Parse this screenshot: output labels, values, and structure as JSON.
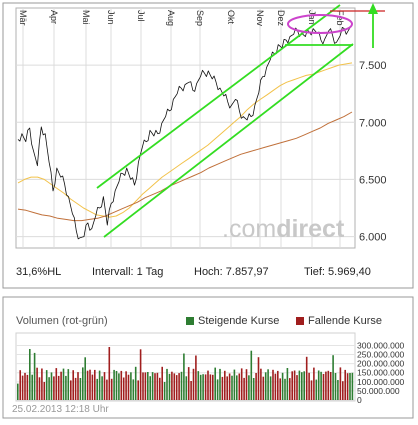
{
  "info": {
    "perf": "31,6%HL",
    "interval": "Intervall: 1 Tag",
    "high": "Hoch:  7.857,97",
    "low": "Tief:  5.969,40"
  },
  "watermark": {
    "light": ".com",
    "bold": "direct"
  },
  "volume_panel": {
    "title": "Volumen (rot-grün)",
    "legend_up": "Steigende Kurse",
    "legend_down": "Fallende Kurse",
    "color_up": "#2e7d32",
    "color_down": "#a01e1e"
  },
  "timestamp": "25.02.2013 12:18 Uhr",
  "colors": {
    "price_line": "#111111",
    "channel": "#33dd22",
    "ma_fast": "#f2c24a",
    "ma_slow": "#c0703a",
    "highlight_ellipse": "#cc44cc",
    "resistance_line": "#cc2222"
  },
  "chart_data": [
    {
      "type": "line",
      "x_tick_labels": [
        "Mär",
        "Apr",
        "Mai",
        "Jun",
        "Jul",
        "Aug",
        "Sep",
        "Okt",
        "Nov",
        "Dez",
        "Jan",
        "Feb"
      ],
      "y_tick_labels": [
        "6.000",
        "6.500",
        "7.000",
        "7.500"
      ],
      "ylim": [
        5900,
        8000
      ],
      "grid": true,
      "high": 7857.97,
      "low": 5969.4,
      "series": [
        {
          "name": "",
          "values": [
            6850,
            6900,
            6830,
            6950,
            6750,
            6620,
            6960,
            6900,
            6650,
            6400,
            6600,
            6520,
            6460,
            6350,
            6200,
            6050,
            5990,
            6000,
            6120,
            6070,
            6180,
            6250,
            6350,
            6100,
            6290,
            6400,
            6480,
            6550,
            6600,
            6500,
            6450,
            6650,
            6780,
            6830,
            6930,
            6880,
            6900,
            6990,
            7050,
            7100,
            7200,
            7250,
            7300,
            7330,
            7350,
            7280,
            7340,
            7400,
            7430,
            7450,
            7380,
            7350,
            7300,
            7230,
            7180,
            7150,
            7200,
            7100,
            7050,
            7020,
            7050,
            7150,
            7260,
            7400,
            7480,
            7550,
            7600,
            7680,
            7650,
            7720,
            7750,
            7770,
            7800,
            7780,
            7750,
            7790,
            7820,
            7780,
            7720,
            7730,
            7800,
            7760,
            7700,
            7760,
            7820,
            7800,
            7858
          ]
        },
        {
          "name": "",
          "values": [
            6470,
            6500,
            6520,
            6520,
            6500,
            6460,
            6420,
            6380,
            6330,
            6290,
            6250,
            6220,
            6190,
            6180,
            6170,
            6180,
            6210,
            6250,
            6310,
            6370,
            6420,
            6470,
            6520,
            6560,
            6600,
            6640,
            6680,
            6720,
            6760,
            6800,
            6850,
            6900,
            6950,
            7000,
            7050,
            7110,
            7160,
            7200,
            7240,
            7280,
            7320,
            7350,
            7370,
            7390,
            7410,
            7420,
            7440,
            7460,
            7480,
            7500,
            7510,
            7520
          ]
        },
        {
          "name": "",
          "values": [
            6240,
            6230,
            6210,
            6190,
            6180,
            6160,
            6150,
            6140,
            6140,
            6150,
            6160,
            6180,
            6210,
            6240,
            6270,
            6300,
            6340,
            6370,
            6400,
            6440,
            6470,
            6500,
            6530,
            6560,
            6600,
            6630,
            6660,
            6690,
            6720,
            6740,
            6760,
            6780,
            6800,
            6820,
            6840,
            6860,
            6890,
            6920,
            6950,
            6990,
            7020,
            7050,
            7090
          ]
        }
      ],
      "volume_axis_labels": [
        "300.000.000",
        "250.000.000",
        "200.000.000",
        "150.000.000",
        "100.000.000",
        "50.000.000",
        "0"
      ],
      "volume_ylim": [
        0,
        330000000
      ]
    }
  ]
}
